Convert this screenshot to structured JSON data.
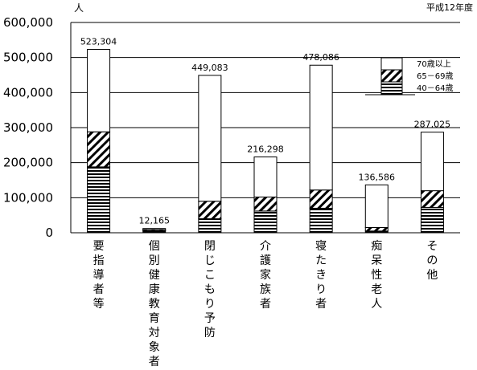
{
  "chart_data": {
    "type": "bar",
    "stacked": true,
    "unit": "人",
    "note": "平成12年度",
    "categories": [
      "要指導者等",
      "個別健康教育対象者",
      "閉じこもり予防",
      "介護家族者",
      "寝たきり者",
      "痴呆性老人",
      "その他"
    ],
    "totals": [
      523304,
      12165,
      449083,
      216298,
      478086,
      136586,
      287025
    ],
    "total_labels": [
      "523,304",
      "12,165",
      "449,083",
      "216,298",
      "478,086",
      "136,586",
      "287,025"
    ],
    "series": [
      {
        "name": "40－64歳",
        "pattern": "horizontal-lines",
        "values": [
          188000,
          6000,
          40000,
          62000,
          70000,
          5000,
          72000
        ]
      },
      {
        "name": "65－69歳",
        "pattern": "diagonal-hatch",
        "values": [
          100000,
          3000,
          50000,
          40000,
          52000,
          10000,
          48000
        ]
      },
      {
        "name": "70歳以上",
        "pattern": "white",
        "values": [
          235304,
          3165,
          359083,
          114298,
          356086,
          121586,
          167025
        ]
      }
    ],
    "legend_order": [
      "70歳以上",
      "65－69歳",
      "40－64歳"
    ],
    "yticks": [
      "0",
      "100,000",
      "200,000",
      "300,000",
      "400,000",
      "500,000",
      "600,000"
    ],
    "ylim": [
      0,
      600000
    ],
    "grid": true,
    "legend_position": "top-right"
  }
}
